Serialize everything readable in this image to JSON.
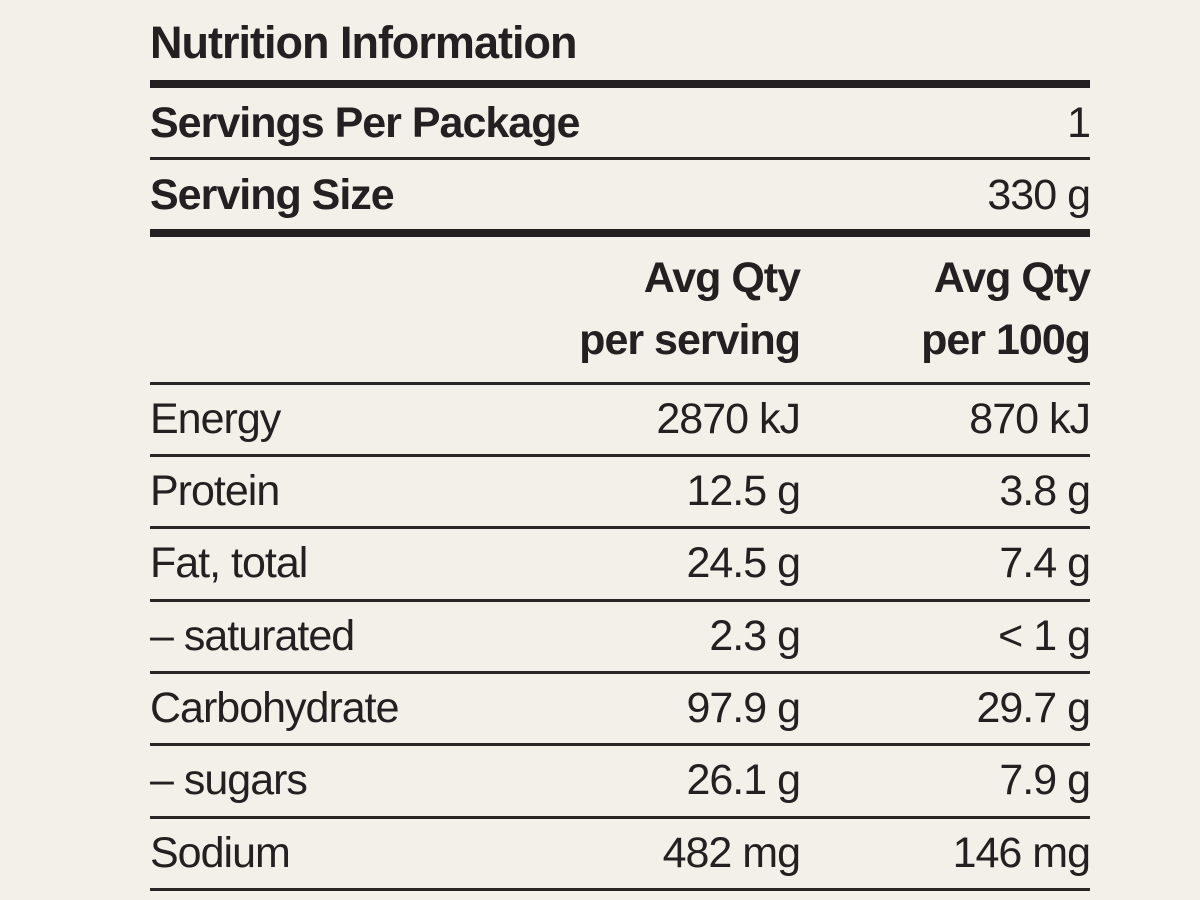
{
  "panel": {
    "title": "Nutrition Information",
    "meta_rows": [
      {
        "label": "Servings Per Package",
        "value": "1"
      },
      {
        "label": "Serving Size",
        "value": "330 g"
      }
    ],
    "columns": {
      "per_serving": [
        "Avg Qty",
        "per serving"
      ],
      "per_100g": [
        "Avg Qty",
        "per 100g"
      ]
    },
    "rows": [
      {
        "label": "Energy",
        "per_serving": "2870 kJ",
        "per_100g": "870 kJ"
      },
      {
        "label": "Protein",
        "per_serving": "12.5 g",
        "per_100g": "3.8 g"
      },
      {
        "label": "Fat, total",
        "per_serving": "24.5 g",
        "per_100g": "7.4 g"
      },
      {
        "label": "– saturated",
        "per_serving": "2.3 g",
        "per_100g": "< 1 g"
      },
      {
        "label": "Carbohydrate",
        "per_serving": "97.9 g",
        "per_100g": "29.7 g"
      },
      {
        "label": "– sugars",
        "per_serving": "26.1 g",
        "per_100g": "7.9 g"
      },
      {
        "label": "Sodium",
        "per_serving": "482 mg",
        "per_100g": "146 mg"
      }
    ],
    "colors": {
      "background": "#f2f0e9",
      "text": "#242021",
      "rule": "#242021"
    }
  }
}
